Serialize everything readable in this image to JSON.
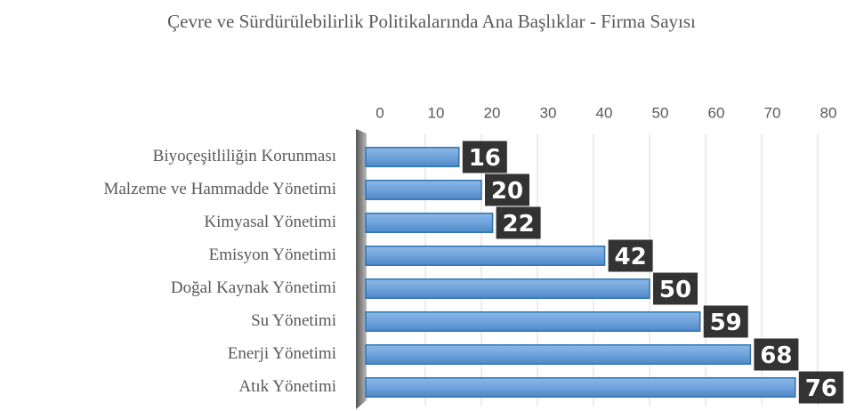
{
  "chart_data": {
    "type": "bar",
    "orientation": "horizontal",
    "title": "Çevre ve Sürdürülebilirlik Politikalarında Ana Başlıklar - Firma Sayısı",
    "categories": [
      "Biyoçeşitliliğin Korunması",
      "Malzeme ve Hammadde Yönetimi",
      "Kimyasal Yönetimi",
      "Emisyon Yönetimi",
      "Doğal Kaynak Yönetimi",
      "Su Yönetimi",
      "Enerji Yönetimi",
      "Atık Yönetimi"
    ],
    "values": [
      16,
      20,
      22,
      42,
      50,
      59,
      68,
      76
    ],
    "color": "#5b9bd5",
    "xlim": [
      0,
      80
    ],
    "xticks": [
      0,
      10,
      20,
      30,
      40,
      50,
      60,
      70,
      80
    ],
    "grid": true
  }
}
